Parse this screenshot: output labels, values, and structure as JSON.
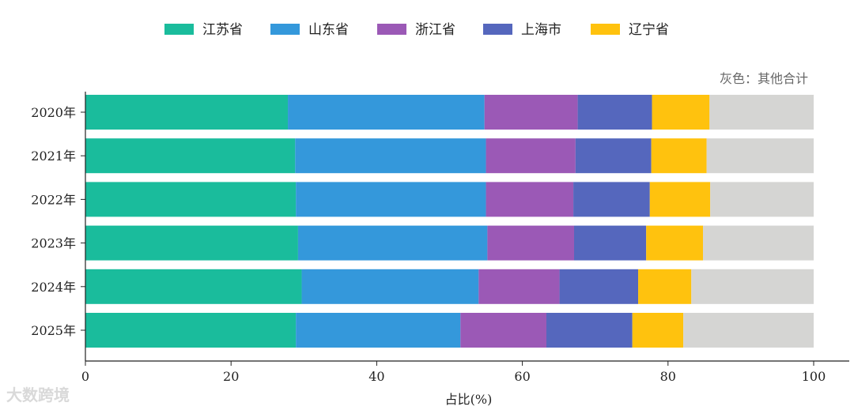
{
  "chart_data": {
    "type": "bar",
    "orientation": "horizontal",
    "stacked": true,
    "title": "",
    "categories": [
      "2020年",
      "2021年",
      "2022年",
      "2023年",
      "2024年",
      "2025年"
    ],
    "series": [
      {
        "name": "江苏省",
        "color": "#1ABC9C",
        "values": [
          27.8,
          28.8,
          28.9,
          29.2,
          29.7,
          28.9
        ]
      },
      {
        "name": "山东省",
        "color": "#3498DB",
        "values": [
          27.0,
          26.2,
          26.1,
          26.0,
          24.3,
          22.6
        ]
      },
      {
        "name": "浙江省",
        "color": "#9B59B6",
        "values": [
          12.8,
          12.3,
          12.0,
          11.9,
          11.1,
          11.8
        ]
      },
      {
        "name": "上海市",
        "color": "#5567BD",
        "values": [
          10.2,
          10.4,
          10.5,
          9.9,
          10.8,
          11.8
        ]
      },
      {
        "name": "辽宁省",
        "color": "#FFC20E",
        "values": [
          7.9,
          7.6,
          8.3,
          7.8,
          7.3,
          7.0
        ]
      },
      {
        "name": "",
        "color": "#D5D5D3",
        "values": [
          14.3,
          14.7,
          14.2,
          15.2,
          16.8,
          17.9
        ]
      }
    ],
    "note": "灰色：其他合计",
    "xlabel": "占比(%)",
    "ylabel": "",
    "xlim": [
      0,
      100
    ],
    "xticks": [
      0,
      20,
      40,
      60,
      80,
      100
    ],
    "grid": false,
    "legend": "top-center"
  },
  "watermark": "大数跨境"
}
